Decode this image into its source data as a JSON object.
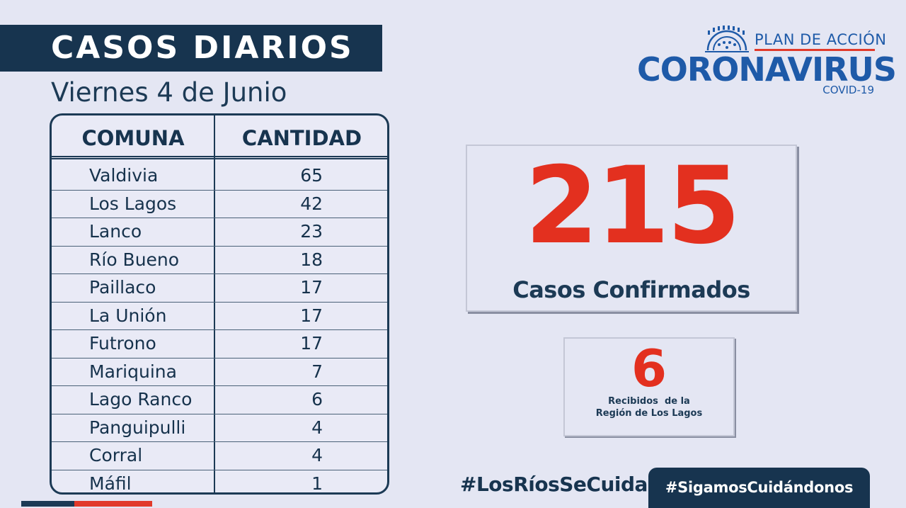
{
  "header": {
    "title": "CASOS DIARIOS",
    "date": "Viernes 4 de Junio"
  },
  "logo": {
    "plan": "PLAN DE ACCIÓN",
    "name": "CORONAVIRUS",
    "covid": "COVID-19"
  },
  "table": {
    "columns": [
      "COMUNA",
      "CANTIDAD"
    ],
    "rows": [
      {
        "comuna": "Valdivia",
        "cantidad": "65"
      },
      {
        "comuna": "Los Lagos",
        "cantidad": "42"
      },
      {
        "comuna": "Lanco",
        "cantidad": "23"
      },
      {
        "comuna": "Río Bueno",
        "cantidad": "18"
      },
      {
        "comuna": "Paillaco",
        "cantidad": "17"
      },
      {
        "comuna": "La Unión",
        "cantidad": "17"
      },
      {
        "comuna": "Futrono",
        "cantidad": "17"
      },
      {
        "comuna": "Mariquina",
        "cantidad": "7"
      },
      {
        "comuna": "Lago Ranco",
        "cantidad": "6"
      },
      {
        "comuna": "Panguipulli",
        "cantidad": "4"
      },
      {
        "comuna": "Corral",
        "cantidad": "4"
      },
      {
        "comuna": "Máfil",
        "cantidad": "1"
      }
    ]
  },
  "summary": {
    "total": "215",
    "total_label": "Casos Confirmados",
    "received": "6",
    "received_label_line1": "Recibidos  de la",
    "received_label_line2": "Región de Los Lagos"
  },
  "footer": {
    "hashtag1": "#LosRíosSeCuida",
    "hashtag2": "#SigamosCuidándonos"
  },
  "colors": {
    "navy": "#17344f",
    "red": "#e3301f",
    "blue": "#1e5aa8",
    "background": "#e4e6f3"
  }
}
